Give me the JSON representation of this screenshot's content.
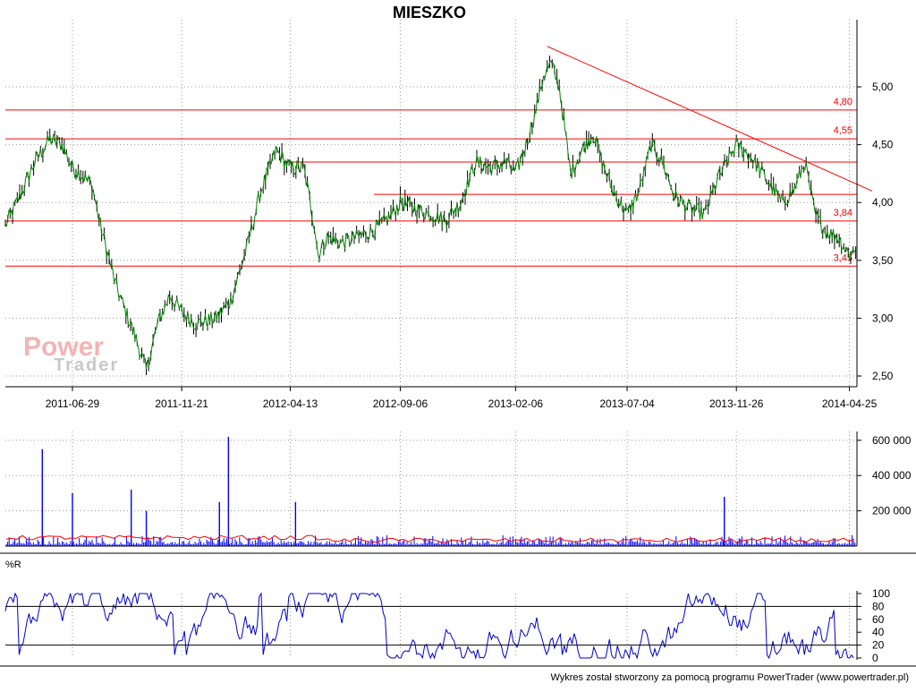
{
  "title": "MIESZKO",
  "footer": "Wykres został stworzony za pomocą programu PowerTrader (www.powertrader.pl)",
  "watermark": {
    "line1": "Power",
    "line2": "Trader"
  },
  "colors": {
    "price": "#008000",
    "levels": "#ff0000",
    "volume": "#0000ff",
    "volume_avg": "#ff0000",
    "wr": "#0000cc",
    "grid": "#999999"
  },
  "chart_data": [
    {
      "type": "line",
      "panel": "price",
      "title": "MIESZKO",
      "x_tick_labels": [
        "2011-06-29",
        "2011-11-21",
        "2012-04-13",
        "2012-09-06",
        "2013-02-06",
        "2013-07-04",
        "2013-11-26",
        "2014-04-25"
      ],
      "y_tick_labels": [
        "2,50",
        "3,00",
        "3,50",
        "4,00",
        "4,50",
        "5,00"
      ],
      "ylim": [
        2.4,
        5.4
      ],
      "grid": true,
      "series": [
        {
          "x": [
            "2011-04-01",
            "2011-04-20",
            "2011-05-10",
            "2011-05-30",
            "2011-06-15",
            "2011-06-29",
            "2011-07-10",
            "2011-07-25",
            "2011-08-05",
            "2011-08-15",
            "2011-08-25",
            "2011-09-05",
            "2011-09-20",
            "2011-10-05",
            "2011-10-20",
            "2011-11-05",
            "2011-11-21",
            "2011-12-10",
            "2012-01-05",
            "2012-01-25",
            "2012-02-15",
            "2012-03-05",
            "2012-03-25",
            "2012-04-13",
            "2012-05-01",
            "2012-05-15",
            "2012-05-20",
            "2012-06-01",
            "2012-06-20",
            "2012-07-10",
            "2012-07-30",
            "2012-08-20",
            "2012-09-06",
            "2012-09-25",
            "2012-10-15",
            "2012-11-05",
            "2012-11-25",
            "2012-12-15",
            "2013-01-05",
            "2013-01-25",
            "2013-02-06",
            "2013-02-20",
            "2013-03-05",
            "2013-03-15",
            "2013-03-25",
            "2013-04-05",
            "2013-04-20",
            "2013-05-05",
            "2013-05-20",
            "2013-06-01",
            "2013-06-15",
            "2013-07-04",
            "2013-07-20",
            "2013-08-05",
            "2013-08-20",
            "2013-09-05",
            "2013-09-25",
            "2013-10-15",
            "2013-11-01",
            "2013-11-26",
            "2013-12-15",
            "2014-01-05",
            "2014-01-25",
            "2014-02-10",
            "2014-02-25",
            "2014-03-10",
            "2014-03-25",
            "2014-04-10",
            "2014-04-25",
            "2014-05-05"
          ],
          "y": [
            3.8,
            4.05,
            4.35,
            4.55,
            4.5,
            4.3,
            4.25,
            4.15,
            3.8,
            3.55,
            3.3,
            3.1,
            2.85,
            2.55,
            2.95,
            3.2,
            3.05,
            2.95,
            3.0,
            3.15,
            3.6,
            4.1,
            4.45,
            4.3,
            4.3,
            3.8,
            3.55,
            3.7,
            3.65,
            3.7,
            3.75,
            3.85,
            4.0,
            3.95,
            3.9,
            3.85,
            4.0,
            4.35,
            4.3,
            4.35,
            4.25,
            4.5,
            4.8,
            5.1,
            5.2,
            5.0,
            4.25,
            4.45,
            4.6,
            4.35,
            4.1,
            3.9,
            4.1,
            4.5,
            4.35,
            4.05,
            3.95,
            3.9,
            4.2,
            4.5,
            4.4,
            4.2,
            4.0,
            4.1,
            4.35,
            3.9,
            3.75,
            3.7,
            3.55,
            3.6
          ]
        }
      ],
      "horizontal_levels": [
        {
          "value": 4.8,
          "label": "4,80"
        },
        {
          "value": 4.55,
          "label": "4,55"
        },
        {
          "value": 4.35,
          "label": ""
        },
        {
          "value": 4.07,
          "label": ""
        },
        {
          "value": 3.84,
          "label": "3,84"
        },
        {
          "value": 3.45,
          "label": "3,45"
        }
      ],
      "trendline": {
        "from": [
          "2013-03-20",
          5.35
        ],
        "to": [
          "2014-05-25",
          4.1
        ]
      }
    },
    {
      "type": "bar",
      "panel": "volume",
      "y_tick_labels": [
        "200 000",
        "400 000",
        "600 000"
      ],
      "ylim": [
        0,
        650000
      ],
      "peaks": [
        {
          "x": "2011-05-20",
          "value": 550000
        },
        {
          "x": "2011-06-29",
          "value": 300000
        },
        {
          "x": "2011-09-15",
          "value": 320000
        },
        {
          "x": "2011-10-05",
          "value": 200000
        },
        {
          "x": "2012-01-10",
          "value": 250000
        },
        {
          "x": "2012-01-22",
          "value": 620000
        },
        {
          "x": "2012-04-20",
          "value": 250000
        },
        {
          "x": "2013-11-10",
          "value": 280000
        }
      ],
      "series": [
        {
          "name": "volume",
          "typical": 30000
        },
        {
          "name": "average",
          "typical": 40000
        }
      ]
    },
    {
      "type": "line",
      "panel": "indicator",
      "title": "%R",
      "y_tick_labels": [
        "0",
        "20",
        "40",
        "60",
        "80",
        "100"
      ],
      "ylim": [
        0,
        100
      ],
      "reference_lines": [
        20,
        80
      ],
      "series": [
        {
          "name": "%R",
          "range": [
            0,
            100
          ]
        }
      ]
    }
  ]
}
